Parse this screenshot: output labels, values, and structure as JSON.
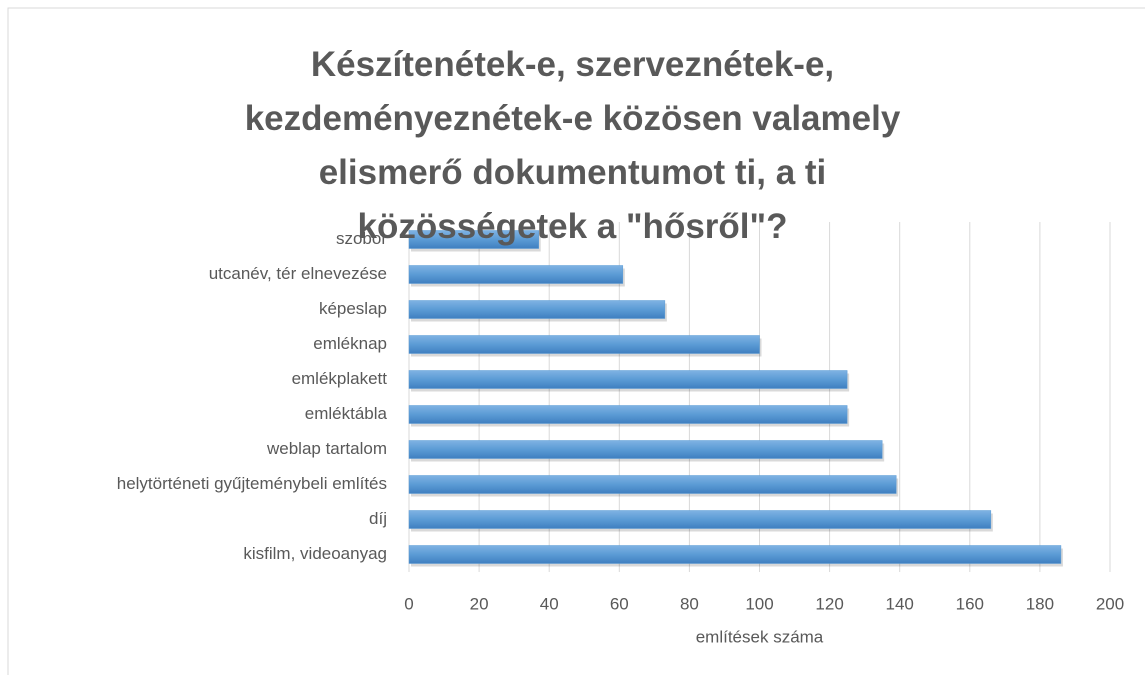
{
  "chart_data": {
    "type": "bar",
    "orientation": "horizontal",
    "title": "Készítenétek-e, szerveznétek-e, kezdeményeznétek-e közösen valamely elismerő dokumentumot ti, a ti közösségetek a \"hősről\"?",
    "categories": [
      "szobor",
      "utcanév, tér elnevezése",
      "képeslap",
      "emléknap",
      "emlékplakett",
      "emléktábla",
      "weblap tartalom",
      "helytörténeti gyűjteménybeli említés",
      "díj",
      "kisfilm, videoanyag"
    ],
    "values": [
      37,
      61,
      73,
      100,
      125,
      125,
      135,
      139,
      166,
      186
    ],
    "color": "#5b9bd5",
    "xlabel": "említések száma",
    "xlim": [
      0,
      200
    ],
    "xticks": [
      0,
      20,
      40,
      60,
      80,
      100,
      120,
      140,
      160,
      180,
      200
    ],
    "grid": true
  }
}
